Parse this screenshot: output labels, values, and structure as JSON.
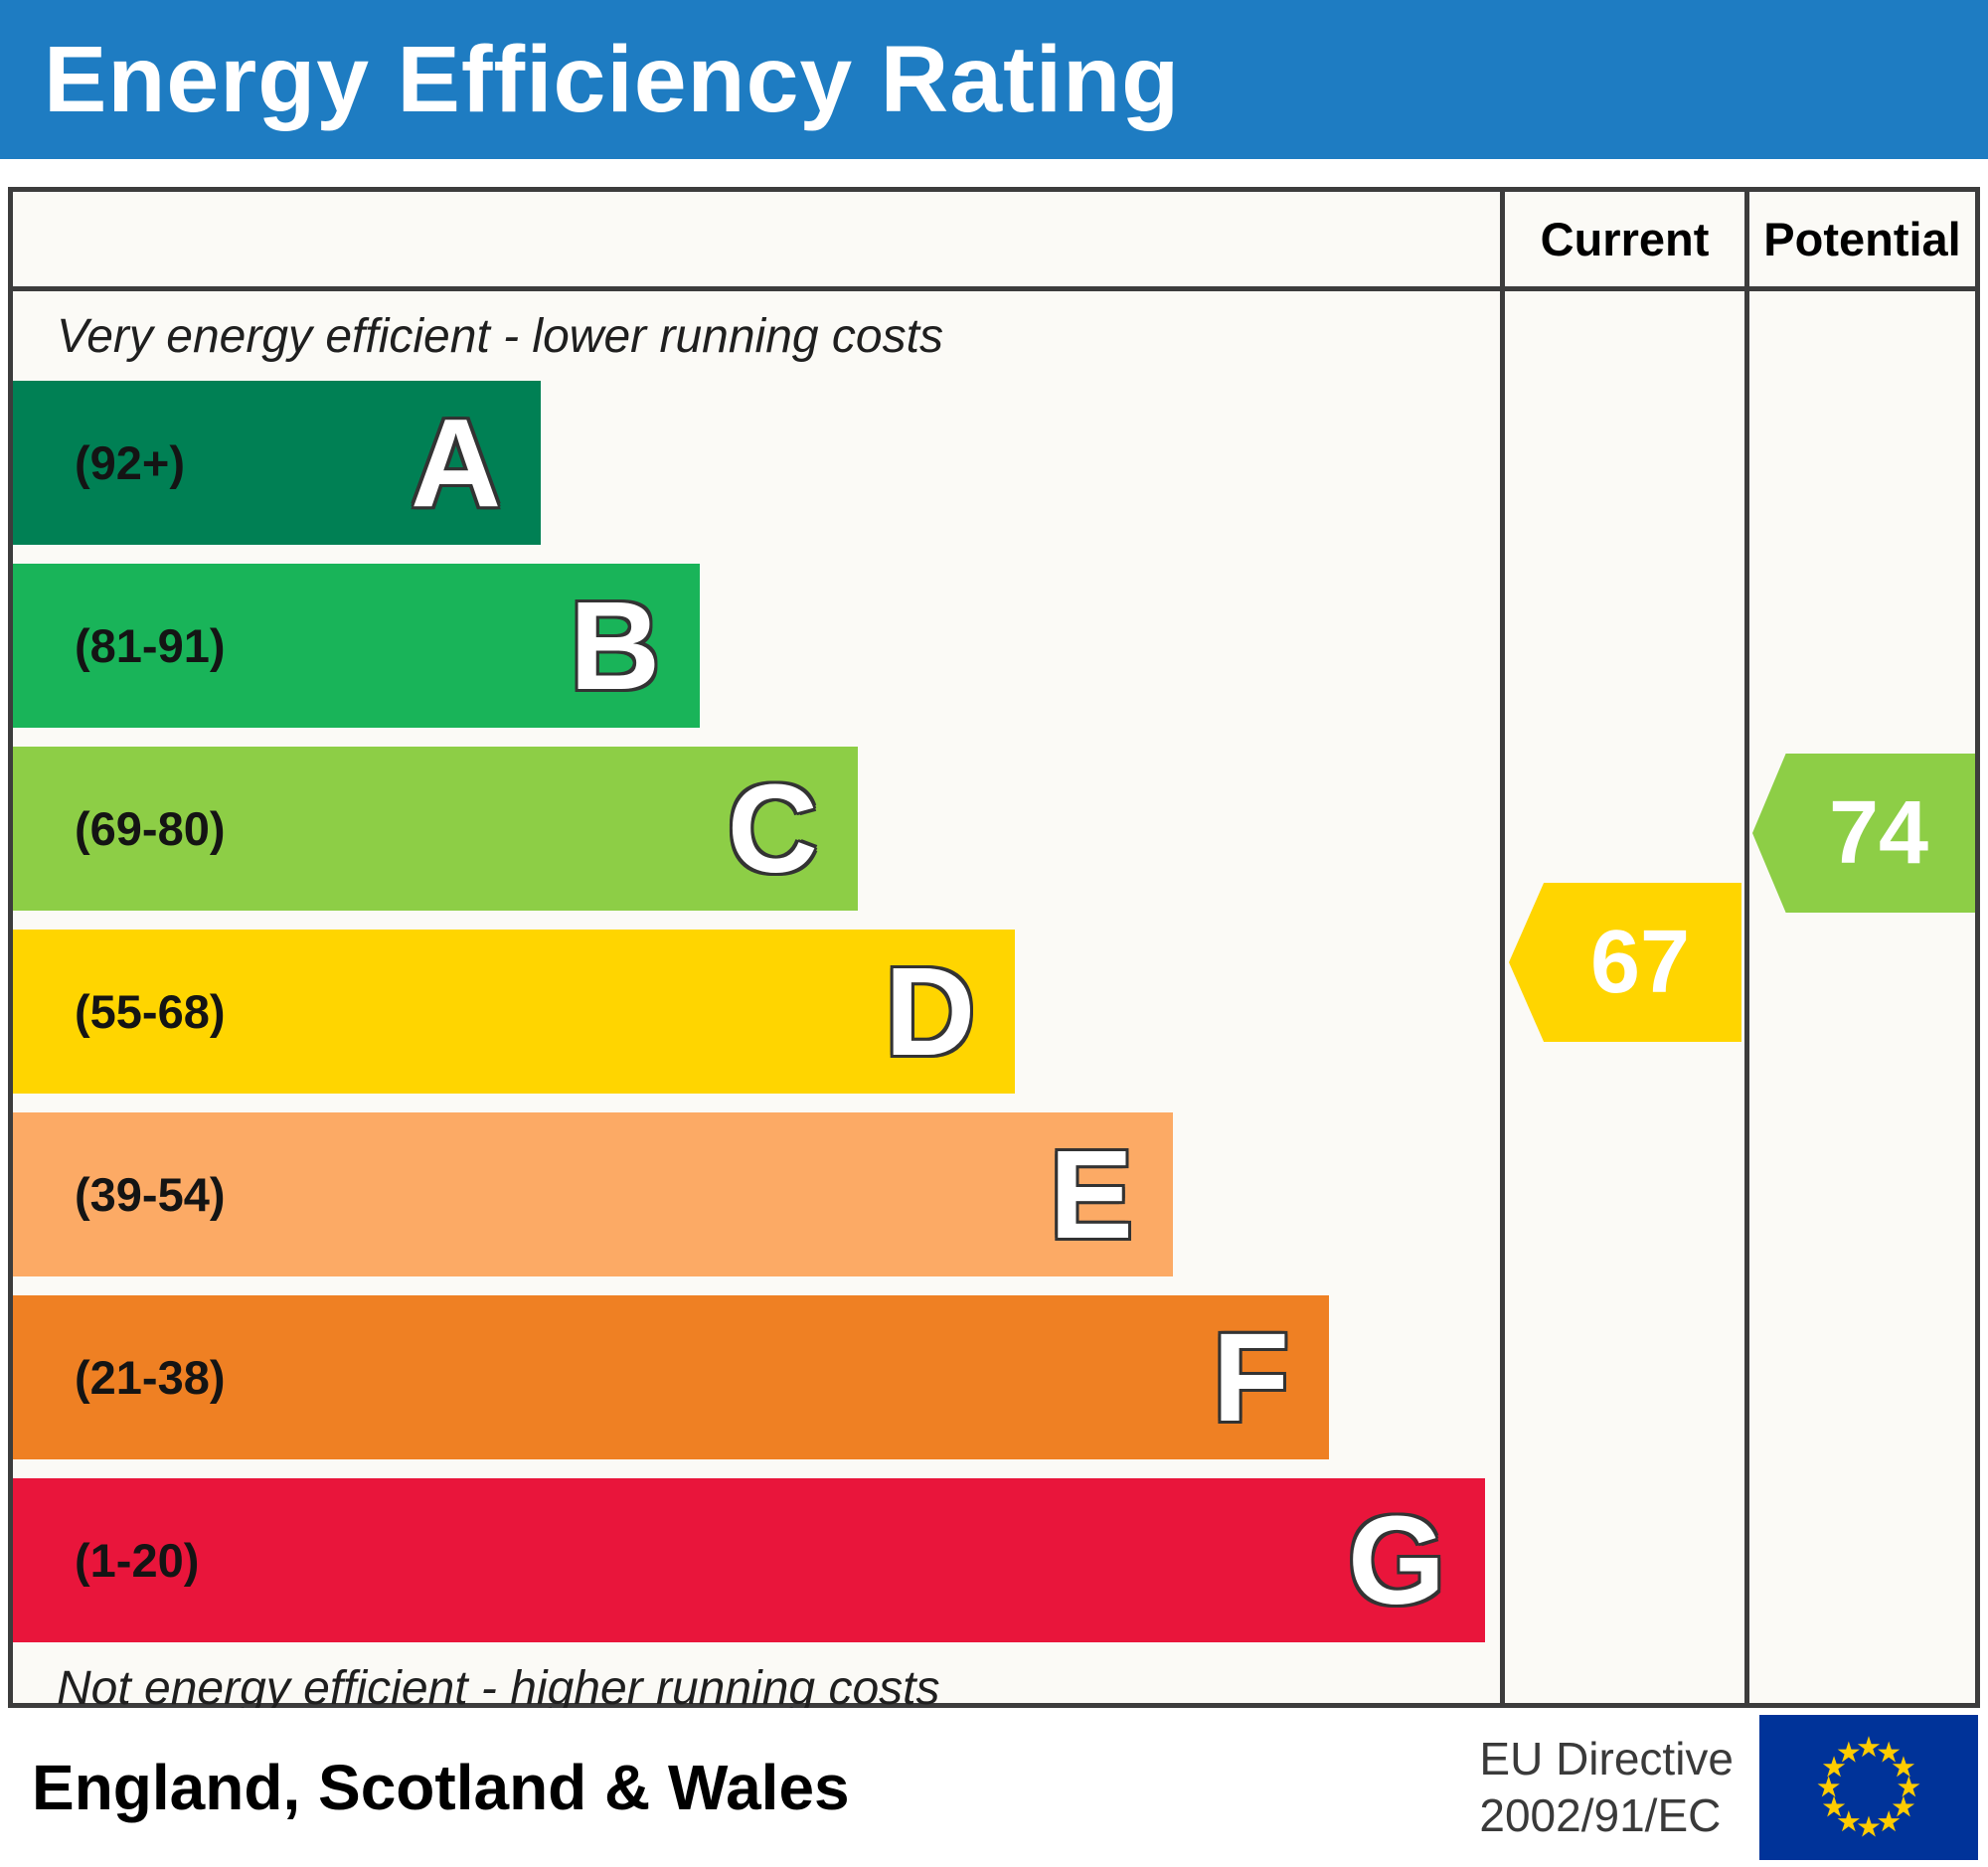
{
  "title": "Energy Efficiency Rating",
  "columns": {
    "current": "Current",
    "potential": "Potential"
  },
  "top_note": "Very energy efficient - lower running costs",
  "bottom_note": "Not energy efficient - higher running costs",
  "bands": [
    {
      "letter": "A",
      "range": "(92+)",
      "color": "#008054",
      "width_pct": 35.5
    },
    {
      "letter": "B",
      "range": "(81-91)",
      "color": "#19b459",
      "width_pct": 46.2
    },
    {
      "letter": "C",
      "range": "(69-80)",
      "color": "#8dce46",
      "width_pct": 56.8
    },
    {
      "letter": "D",
      "range": "(55-68)",
      "color": "#ffd500",
      "width_pct": 67.4
    },
    {
      "letter": "E",
      "range": "(39-54)",
      "color": "#fcaa65",
      "width_pct": 78.0
    },
    {
      "letter": "F",
      "range": "(21-38)",
      "color": "#ef8023",
      "width_pct": 88.5
    },
    {
      "letter": "G",
      "range": "(1-20)",
      "color": "#e9153b",
      "width_pct": 99.0
    }
  ],
  "current": {
    "value": "67",
    "band": "D",
    "color": "#ffd500"
  },
  "potential": {
    "value": "74",
    "band": "C",
    "color": "#8dce46"
  },
  "footer": {
    "region": "England, Scotland & Wales",
    "directive_line1": "EU Directive",
    "directive_line2": "2002/91/EC"
  },
  "theme": {
    "header_blue": "#1e7cc2",
    "border": "#3c3c3c",
    "flag_blue": "#003399",
    "star_yellow": "#ffcc00"
  },
  "chart_data": {
    "type": "bar",
    "title": "Energy Efficiency Rating",
    "categories": [
      "A (92+)",
      "B (81-91)",
      "C (69-80)",
      "D (55-68)",
      "E (39-54)",
      "F (21-38)",
      "G (1-20)"
    ],
    "values": [
      35.5,
      46.2,
      56.8,
      67.4,
      78.0,
      88.5,
      99.0
    ],
    "value_meaning": "relative bar width percent of chart column",
    "markers": {
      "current": 67,
      "current_band": "D",
      "potential": 74,
      "potential_band": "C"
    },
    "top_annotation": "Very energy efficient - lower running costs",
    "bottom_annotation": "Not energy efficient - higher running costs",
    "region": "England, Scotland & Wales",
    "directive": "EU Directive 2002/91/EC",
    "legend_position": "none",
    "grid": false
  }
}
